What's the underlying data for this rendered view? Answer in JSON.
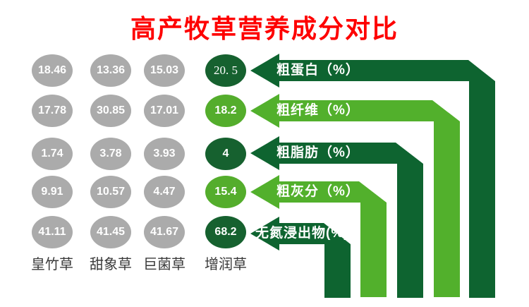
{
  "title": {
    "text": "高产牧草营养成分对比",
    "color": "#fe0000"
  },
  "chart_data": {
    "type": "table",
    "title": "高产牧草营养成分对比",
    "description": "Comparison of nutritional components (%) of four high-yield forage grasses; gray bubbles are the three comparison grasses, green bubbles highlight 增润草, each row labeled by a green elbow arrow.",
    "columns": [
      "皇竹草",
      "甜象草",
      "巨菌草",
      "增润草"
    ],
    "rows": [
      {
        "label": "粗蛋白（%）",
        "values": [
          "18.46",
          "13.36",
          "15.03",
          "20. 5"
        ],
        "zengrun_color": "dark",
        "zengrun_serif": true
      },
      {
        "label": "粗纤维（%）",
        "values": [
          "17.78",
          "30.85",
          "17.01",
          "18.2"
        ],
        "zengrun_color": "light"
      },
      {
        "label": "粗脂肪（%）",
        "values": [
          "1.74",
          "3.78",
          "3.93",
          "4"
        ],
        "zengrun_color": "dark"
      },
      {
        "label": "粗灰分（%）",
        "values": [
          "9.91",
          "10.57",
          "4.47",
          "15.4"
        ],
        "zengrun_color": "light"
      },
      {
        "label": "无氮浸出物(%)",
        "values": [
          "41.11",
          "41.45",
          "41.67",
          "68.2"
        ],
        "zengrun_color": "dark"
      }
    ],
    "legend_position": "none",
    "grid": false
  },
  "colors": {
    "title_red": "#fe0000",
    "arrow_dark": "#0e6430",
    "arrow_light": "#52b02c",
    "circle_gray": "#ababab",
    "circle_dark": "#16612f",
    "circle_light": "#54ad2c",
    "value_text": "#ffffff",
    "column_label": "#3a3a3a"
  }
}
